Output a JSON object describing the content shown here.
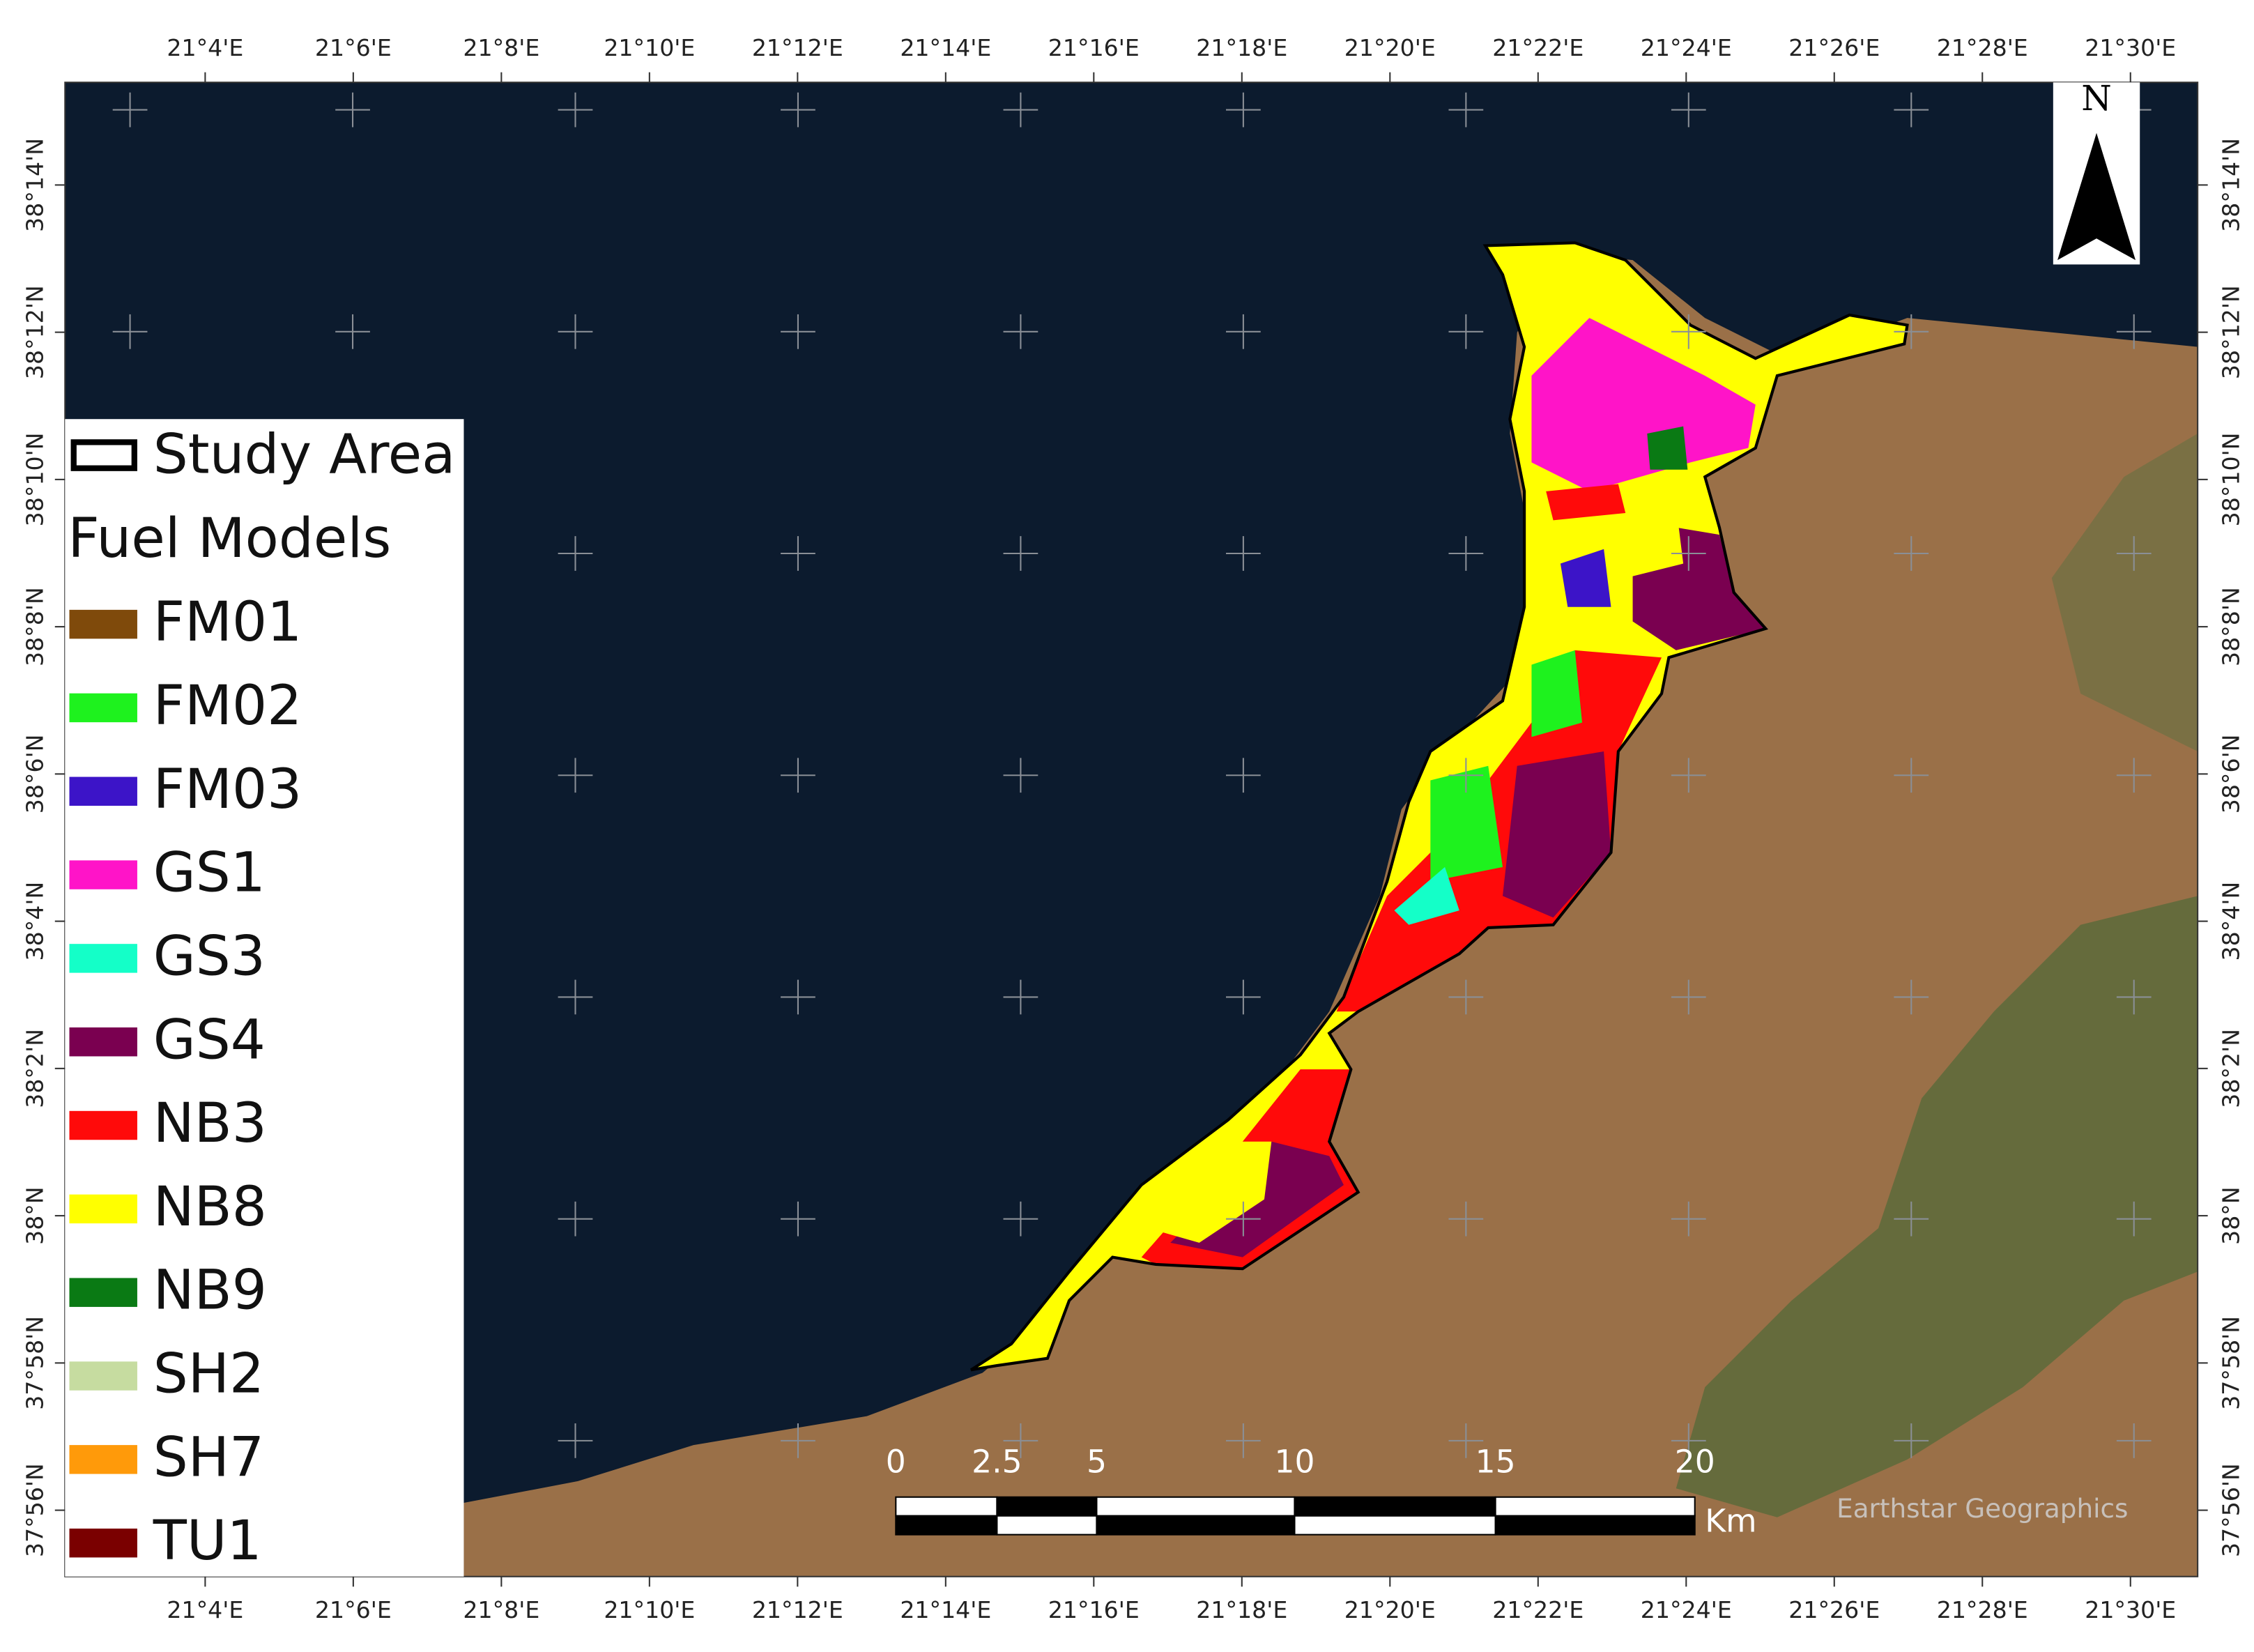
{
  "top_axis_labels": [
    "21°4'E",
    "21°6'E",
    "21°8'E",
    "21°10'E",
    "21°12'E",
    "21°14'E",
    "21°16'E",
    "21°18'E",
    "21°20'E",
    "21°22'E",
    "21°24'E",
    "21°26'E",
    "21°28'E",
    "21°30'E"
  ],
  "bottom_axis_labels": [
    "21°4'E",
    "21°6'E",
    "21°8'E",
    "21°10'E",
    "21°12'E",
    "21°14'E",
    "21°16'E",
    "21°18'E",
    "21°20'E",
    "21°22'E",
    "21°24'E",
    "21°26'E",
    "21°28'E",
    "21°30'E"
  ],
  "left_axis_labels": [
    "38°14'N",
    "38°12'N",
    "38°10'N",
    "38°8'N",
    "38°6'N",
    "38°4'N",
    "38°2'N",
    "38°N",
    "37°58'N",
    "37°56'N"
  ],
  "right_axis_labels": [
    "38°14'N",
    "38°12'N",
    "38°10'N",
    "38°8'N",
    "38°6'N",
    "38°4'N",
    "38°2'N",
    "38°N",
    "37°58'N",
    "37°56'N"
  ],
  "legend": {
    "study_area": "Study Area",
    "title": "Fuel Models",
    "items": [
      {
        "label": "FM01",
        "color": "#7f4a0b"
      },
      {
        "label": "FM02",
        "color": "#1ef21e"
      },
      {
        "label": "FM03",
        "color": "#3c14c8"
      },
      {
        "label": "GS1",
        "color": "#ff14c8"
      },
      {
        "label": "GS3",
        "color": "#14ffc8"
      },
      {
        "label": "GS4",
        "color": "#7a0050"
      },
      {
        "label": "NB3",
        "color": "#ff0a0a"
      },
      {
        "label": "NB8",
        "color": "#ffff00"
      },
      {
        "label": "NB9",
        "color": "#0a7a14"
      },
      {
        "label": "SH2",
        "color": "#c6dca0"
      },
      {
        "label": "SH7",
        "color": "#ff9a0a"
      },
      {
        "label": "TU1",
        "color": "#7a0000"
      }
    ]
  },
  "north_arrow": "N",
  "scale_bar": {
    "labels": [
      "0",
      "2.5",
      "5",
      "10",
      "15",
      "20"
    ],
    "unit": "Km"
  },
  "attribution": "Earthstar Geographics"
}
